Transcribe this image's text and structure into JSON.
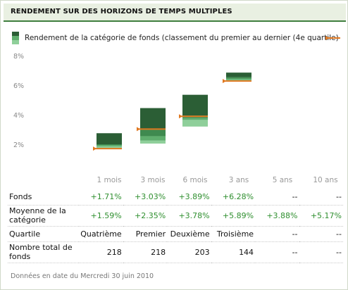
{
  "header": {
    "title": "RENDEMENT SUR DES HORIZONS DE TEMPS MULTIPLES"
  },
  "legend": {
    "text": "Rendement de la catégorie de fonds (classement du premier au dernier (4e quartile)"
  },
  "colors": {
    "q1": "#2b5e35",
    "q2": "#3f8a4f",
    "q3": "#5fae6e",
    "q4": "#8fcf9a",
    "fund_marker": "#e07820",
    "accent": "#3f7f3f"
  },
  "chart_data": {
    "type": "bar",
    "title": "",
    "categories": [
      "1 mois",
      "3 mois",
      "6 mois",
      "3 ans",
      "5 ans",
      "10 ans"
    ],
    "ylim": [
      1,
      9
    ],
    "yticks": [
      "2%",
      "4%",
      "6%",
      "8%"
    ],
    "ytick_values": [
      2,
      4,
      6,
      8
    ],
    "quartile_ranges": [
      {
        "category": "1 mois",
        "bands": [
          [
            1.7,
            1.85
          ],
          [
            1.85,
            1.95
          ],
          [
            1.95,
            2.0
          ],
          [
            2.0,
            2.75
          ]
        ]
      },
      {
        "category": "3 mois",
        "bands": [
          [
            2.05,
            2.25
          ],
          [
            2.25,
            2.55
          ],
          [
            2.55,
            3.0
          ],
          [
            3.0,
            4.45
          ]
        ]
      },
      {
        "category": "6 mois",
        "bands": [
          [
            3.2,
            3.65
          ],
          [
            3.65,
            3.78
          ],
          [
            3.78,
            3.95
          ],
          [
            3.95,
            5.35
          ]
        ]
      },
      {
        "category": "3 ans",
        "bands": [
          [
            6.25,
            6.35
          ],
          [
            6.35,
            6.45
          ],
          [
            6.45,
            6.55
          ],
          [
            6.55,
            6.85
          ]
        ]
      },
      {
        "category": "5 ans",
        "bands": []
      },
      {
        "category": "10 ans",
        "bands": []
      }
    ],
    "fund_values": [
      1.71,
      3.03,
      3.89,
      6.28,
      null,
      null
    ],
    "grid": false
  },
  "table": {
    "rows": [
      {
        "label": "Fonds",
        "values": [
          "+1.71%",
          "+3.03%",
          "+3.89%",
          "+6.28%",
          "--",
          "--"
        ]
      },
      {
        "label": "Moyenne de la catégorie",
        "values": [
          "+1.59%",
          "+2.35%",
          "+3.78%",
          "+5.89%",
          "+3.88%",
          "+5.17%"
        ]
      },
      {
        "label": "Quartile",
        "values": [
          "Quatrième",
          "Premier",
          "Deuxième",
          "Troisième",
          "--",
          "--"
        ]
      },
      {
        "label": "Nombre total de fonds",
        "values": [
          "218",
          "218",
          "203",
          "144",
          "--",
          "--"
        ]
      }
    ]
  },
  "footer": {
    "text": "Données en date du Mercredi 30 juin 2010"
  }
}
